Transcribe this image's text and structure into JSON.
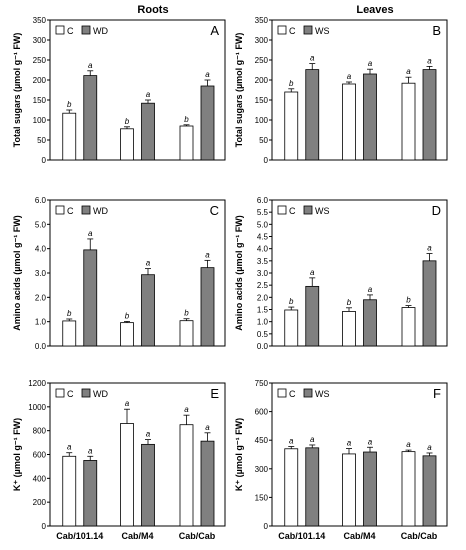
{
  "column_titles": [
    "Roots",
    "Leaves"
  ],
  "colors": {
    "control_fill": "#ffffff",
    "treatment_fill": "#808080",
    "stroke": "#000000"
  },
  "chart_data": [
    {
      "type": "bar",
      "panel": "A",
      "column": "Roots",
      "ylabel": "Total sugars (µmol g⁻¹ FW)",
      "ylim": [
        0,
        350
      ],
      "yticks": [
        "0",
        "50",
        "100",
        "150",
        "200",
        "250",
        "300",
        "350"
      ],
      "categories": [
        "Cab/101.14",
        "Cab/M4",
        "Cab/Cab"
      ],
      "show_categories": false,
      "legend": [
        "C",
        "WD"
      ],
      "series": [
        {
          "name": "C",
          "values": [
            117,
            78,
            85
          ],
          "errors": [
            8,
            5,
            3
          ],
          "letters": [
            "b",
            "b",
            "b"
          ]
        },
        {
          "name": "WD",
          "values": [
            211,
            142,
            185
          ],
          "errors": [
            12,
            8,
            15
          ],
          "letters": [
            "a",
            "a",
            "a"
          ]
        }
      ]
    },
    {
      "type": "bar",
      "panel": "B",
      "column": "Leaves",
      "ylabel": "Total sugars (µmol g⁻¹ FW)",
      "ylim": [
        0,
        350
      ],
      "yticks": [
        "0",
        "50",
        "100",
        "150",
        "200",
        "250",
        "300",
        "350"
      ],
      "categories": [
        "Cab/101.14",
        "Cab/M4",
        "Cab/Cab"
      ],
      "show_categories": false,
      "legend": [
        "C",
        "WS"
      ],
      "series": [
        {
          "name": "C",
          "values": [
            170,
            190,
            192
          ],
          "errors": [
            8,
            5,
            15
          ],
          "letters": [
            "b",
            "a",
            "a"
          ]
        },
        {
          "name": "WS",
          "values": [
            226,
            215,
            226
          ],
          "errors": [
            15,
            12,
            8
          ],
          "letters": [
            "a",
            "a",
            "a"
          ]
        }
      ]
    },
    {
      "type": "bar",
      "panel": "C",
      "column": "Roots",
      "ylabel": "Amino acids (µmol g⁻¹ FW)",
      "ylim": [
        0,
        6
      ],
      "yticks": [
        "0.0",
        "1.0",
        "2.0",
        "3.0",
        "4.0",
        "5.0",
        "6.0"
      ],
      "categories": [
        "Cab/101.14",
        "Cab/M4",
        "Cab/Cab"
      ],
      "show_categories": false,
      "legend": [
        "C",
        "WD"
      ],
      "series": [
        {
          "name": "C",
          "values": [
            1.03,
            0.96,
            1.04
          ],
          "errors": [
            0.08,
            0.05,
            0.08
          ],
          "letters": [
            "b",
            "b",
            "b"
          ]
        },
        {
          "name": "WD",
          "values": [
            3.95,
            2.93,
            3.22
          ],
          "errors": [
            0.45,
            0.25,
            0.3
          ],
          "letters": [
            "a",
            "a",
            "a"
          ]
        }
      ]
    },
    {
      "type": "bar",
      "panel": "D",
      "column": "Leaves",
      "ylabel": "Amino acids (µmol g⁻¹ FW)",
      "ylim": [
        0,
        6
      ],
      "yticks": [
        "0.0",
        "0.5",
        "1.0",
        "1.5",
        "2.0",
        "2.5",
        "3.0",
        "3.5",
        "4.0",
        "4.5",
        "5.0",
        "5.5",
        "6.0"
      ],
      "categories": [
        "Cab/101.14",
        "Cab/M4",
        "Cab/Cab"
      ],
      "show_categories": false,
      "legend": [
        "C",
        "WS"
      ],
      "series": [
        {
          "name": "C",
          "values": [
            1.48,
            1.42,
            1.58
          ],
          "errors": [
            0.12,
            0.15,
            0.08
          ],
          "letters": [
            "b",
            "b",
            "b"
          ]
        },
        {
          "name": "WS",
          "values": [
            2.45,
            1.9,
            3.5
          ],
          "errors": [
            0.35,
            0.2,
            0.3
          ],
          "letters": [
            "a",
            "a",
            "a"
          ]
        }
      ]
    },
    {
      "type": "bar",
      "panel": "E",
      "column": "Roots",
      "ylabel": "K⁺ (µmol g⁻¹ FW)",
      "ylim": [
        0,
        1200
      ],
      "yticks": [
        "0",
        "200",
        "400",
        "600",
        "800",
        "1000",
        "1200"
      ],
      "categories": [
        "Cab/101.14",
        "Cab/M4",
        "Cab/Cab"
      ],
      "show_categories": true,
      "legend": [
        "C",
        "WD"
      ],
      "series": [
        {
          "name": "C",
          "values": [
            585,
            860,
            850
          ],
          "errors": [
            30,
            120,
            80
          ],
          "letters": [
            "a",
            "a",
            "a"
          ]
        },
        {
          "name": "WD",
          "values": [
            550,
            685,
            712
          ],
          "errors": [
            35,
            40,
            70
          ],
          "letters": [
            "a",
            "a",
            "a"
          ]
        }
      ]
    },
    {
      "type": "bar",
      "panel": "F",
      "column": "Leaves",
      "ylabel": "K⁺ (µmol g⁻¹ FW)",
      "ylim": [
        0,
        750
      ],
      "yticks": [
        "0",
        "150",
        "300",
        "450",
        "600",
        "750"
      ],
      "categories": [
        "Cab/101.14",
        "Cab/M4",
        "Cab/Cab"
      ],
      "show_categories": true,
      "legend": [
        "C",
        "WS"
      ],
      "series": [
        {
          "name": "C",
          "values": [
            405,
            378,
            390
          ],
          "errors": [
            12,
            28,
            8
          ],
          "letters": [
            "a",
            "a",
            "a"
          ]
        },
        {
          "name": "WS",
          "values": [
            410,
            388,
            368
          ],
          "errors": [
            15,
            25,
            15
          ],
          "letters": [
            "a",
            "a",
            "a"
          ]
        }
      ]
    }
  ]
}
